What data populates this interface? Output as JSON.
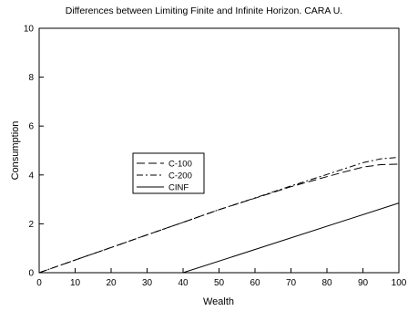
{
  "chart_data": {
    "type": "line",
    "title": "Differences between Limiting Finite and Infinite Horizon. CARA U.",
    "xlabel": "Wealth",
    "ylabel": "Consumption",
    "xlim": [
      0,
      100
    ],
    "ylim": [
      0,
      10
    ],
    "x_ticks": [
      "0",
      "10",
      "20",
      "30",
      "40",
      "50",
      "60",
      "70",
      "80",
      "90",
      "100"
    ],
    "y_ticks": [
      "0",
      "2",
      "4",
      "6",
      "8",
      "10"
    ],
    "grid": false,
    "legend_position": "center-left",
    "series": [
      {
        "name": "C-100",
        "dash": "long-dash",
        "x": [
          0,
          10,
          20,
          30,
          40,
          50,
          60,
          70,
          80,
          85,
          90,
          95,
          100
        ],
        "y": [
          0,
          0.52,
          1.03,
          1.55,
          2.06,
          2.58,
          3.05,
          3.52,
          3.93,
          4.13,
          4.32,
          4.42,
          4.44
        ]
      },
      {
        "name": "C-200",
        "dash": "dash-dot",
        "x": [
          0,
          10,
          20,
          30,
          40,
          50,
          60,
          70,
          80,
          85,
          90,
          95,
          100
        ],
        "y": [
          0,
          0.52,
          1.03,
          1.55,
          2.06,
          2.58,
          3.06,
          3.55,
          4.02,
          4.26,
          4.5,
          4.66,
          4.72
        ]
      },
      {
        "name": "CINF",
        "dash": "solid",
        "x": [
          0,
          40,
          100
        ],
        "y": [
          0,
          0,
          2.85
        ]
      }
    ]
  }
}
